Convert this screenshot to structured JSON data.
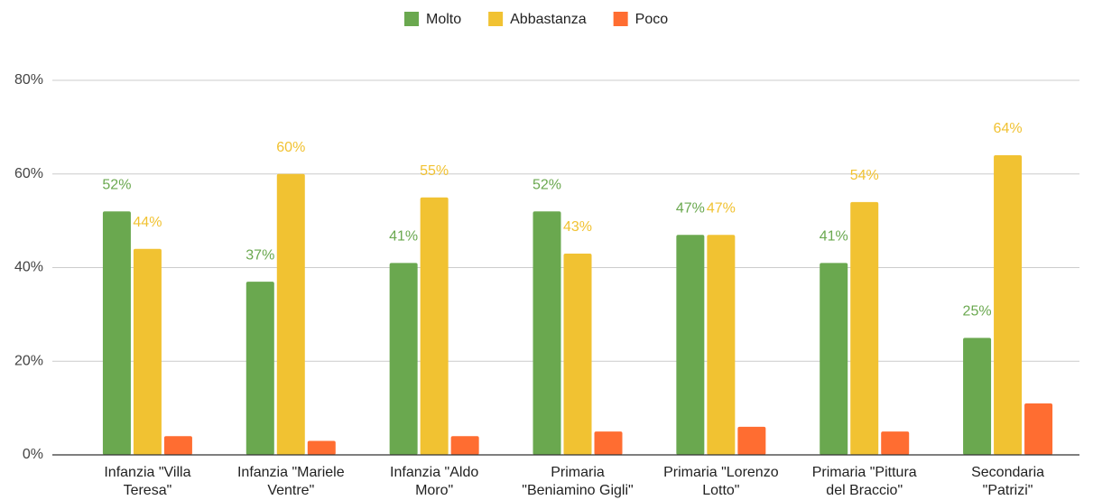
{
  "chart_data": {
    "type": "bar",
    "categories": [
      "Infanzia \"Villa Teresa\"",
      "Infanzia \"Mariele Ventre\"",
      "Infanzia \"Aldo Moro\"",
      "Primaria \"Beniamino Gigli\"",
      "Primaria \"Lorenzo Lotto\"",
      "Primaria \"Pittura del Braccio\"",
      "Secondaria \"Patrizi\""
    ],
    "series": [
      {
        "name": "Molto",
        "color": "#6aa84f",
        "values": [
          52,
          37,
          41,
          52,
          47,
          41,
          25
        ],
        "value_labels": [
          "52%",
          "37%",
          "41%",
          "52%",
          "47%",
          "41%",
          "25%"
        ]
      },
      {
        "name": "Abbastanza",
        "color": "#f1c232",
        "values": [
          44,
          60,
          55,
          43,
          47,
          54,
          64
        ],
        "value_labels": [
          "44%",
          "60%",
          "55%",
          "43%",
          "47%",
          "54%",
          "64%"
        ]
      },
      {
        "name": "Poco",
        "color": "#ff6d31",
        "values": [
          4,
          3,
          4,
          5,
          6,
          5,
          11
        ]
      }
    ],
    "ylim": [
      0,
      80
    ],
    "yticks": [
      {
        "value": 0,
        "label": "0%"
      },
      {
        "value": 20,
        "label": "20%"
      },
      {
        "value": 40,
        "label": "40%"
      },
      {
        "value": 60,
        "label": "60%"
      },
      {
        "value": 80,
        "label": "80%"
      }
    ],
    "grid": true,
    "legend": "top"
  }
}
